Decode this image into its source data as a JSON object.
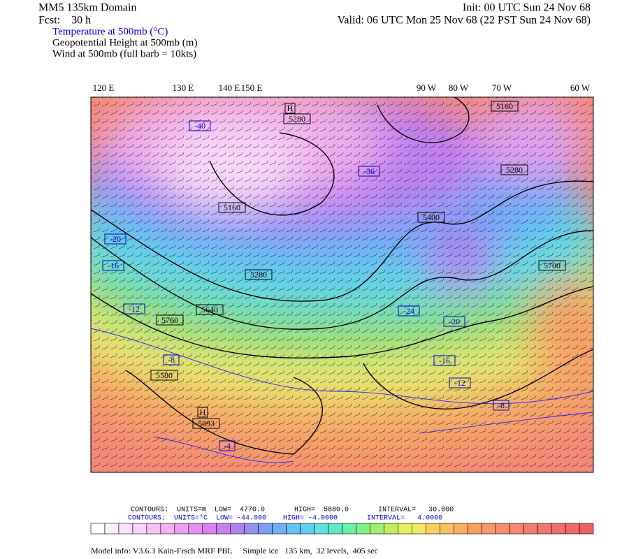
{
  "header": {
    "domain": "MM5 135km Domain",
    "forecast": "Fcst:    30 h",
    "init": "Init: 00 UTC Sun 24 Nov 68",
    "valid": "Valid: 06 UTC Mon 25 Nov 68 (22 PST Sun 24 Nov 68)"
  },
  "fields": [
    {
      "text": "Temperature at 500mb (°C)",
      "color": "#0000cc"
    },
    {
      "text": "Geopotential Height at 500mb (m)",
      "color": "#000000"
    },
    {
      "text": "Wind at 500mb (full barb = 10kts)",
      "color": "#000000"
    }
  ],
  "longitude_labels": [
    "120 E",
    "130 E",
    "140 E",
    "150 E",
    "90 W",
    "80 W",
    "70 W",
    "60 W"
  ],
  "map_labels": [
    {
      "text": "H",
      "color": "#000000"
    },
    {
      "text": "5280",
      "color": "#000000"
    },
    {
      "text": "-40",
      "color": "#0000cc"
    },
    {
      "text": "5160",
      "color": "#000000"
    },
    {
      "text": "5280",
      "color": "#000000"
    },
    {
      "text": "5640",
      "color": "#000000"
    },
    {
      "text": "5760",
      "color": "#000000"
    },
    {
      "text": "5580",
      "color": "#000000"
    },
    {
      "text": "H",
      "color": "#000000"
    },
    {
      "text": "5893",
      "color": "#000000"
    },
    {
      "text": "-4",
      "color": "#0000cc"
    },
    {
      "text": "-8",
      "color": "#0000cc"
    },
    {
      "text": "-12",
      "color": "#0000cc"
    },
    {
      "text": "-16",
      "color": "#0000cc"
    },
    {
      "text": "-20",
      "color": "#0000cc"
    },
    {
      "text": "5280",
      "color": "#000000"
    },
    {
      "text": "-36",
      "color": "#0000cc"
    },
    {
      "text": "5400",
      "color": "#000000"
    },
    {
      "text": "5700",
      "color": "#000000"
    },
    {
      "text": "-24",
      "color": "#0000cc"
    },
    {
      "text": "-20",
      "color": "#0000cc"
    },
    {
      "text": "-16",
      "color": "#0000cc"
    },
    {
      "text": "-12",
      "color": "#0000cc"
    },
    {
      "text": "-8",
      "color": "#0000cc"
    },
    {
      "text": "5160",
      "color": "#000000"
    }
  ],
  "footer": {
    "height_contours": "CONTOURS:  UNITS=m  LOW=  4770.0       HIGH=  5880.0       INTERVAL=   30.000",
    "temperature_contours": "CONTOURS:  UNITS=°C  LOW= -44.000    HIGH= -4.0000       INTERVAL=   4.0000",
    "model_info": "Model info: V3.6.3 Kain-Frsch MRF PBL     Simple ice   135 km,  32 levels,  405 sec"
  },
  "colorbar": {
    "colors": [
      "#ffffff",
      "#fff0ff",
      "#ffe0ff",
      "#fdd0fd",
      "#f8c0f8",
      "#f4b0f4",
      "#eea0f0",
      "#e690f0",
      "#dc80f0",
      "#c880f0",
      "#b080f0",
      "#9890f0",
      "#80a0f8",
      "#70b0f8",
      "#68c0f8",
      "#60d0f0",
      "#60e0e0",
      "#60e8c8",
      "#68f0a8",
      "#80f088",
      "#a0f070",
      "#c0f060",
      "#e0f060",
      "#f0e860",
      "#f8d060",
      "#f8c060",
      "#f8b060",
      "#f8a060",
      "#f89868",
      "#f89070",
      "#f88870",
      "#f08070",
      "#f07870",
      "#f07070",
      "#f06868",
      "#f06060"
    ]
  }
}
